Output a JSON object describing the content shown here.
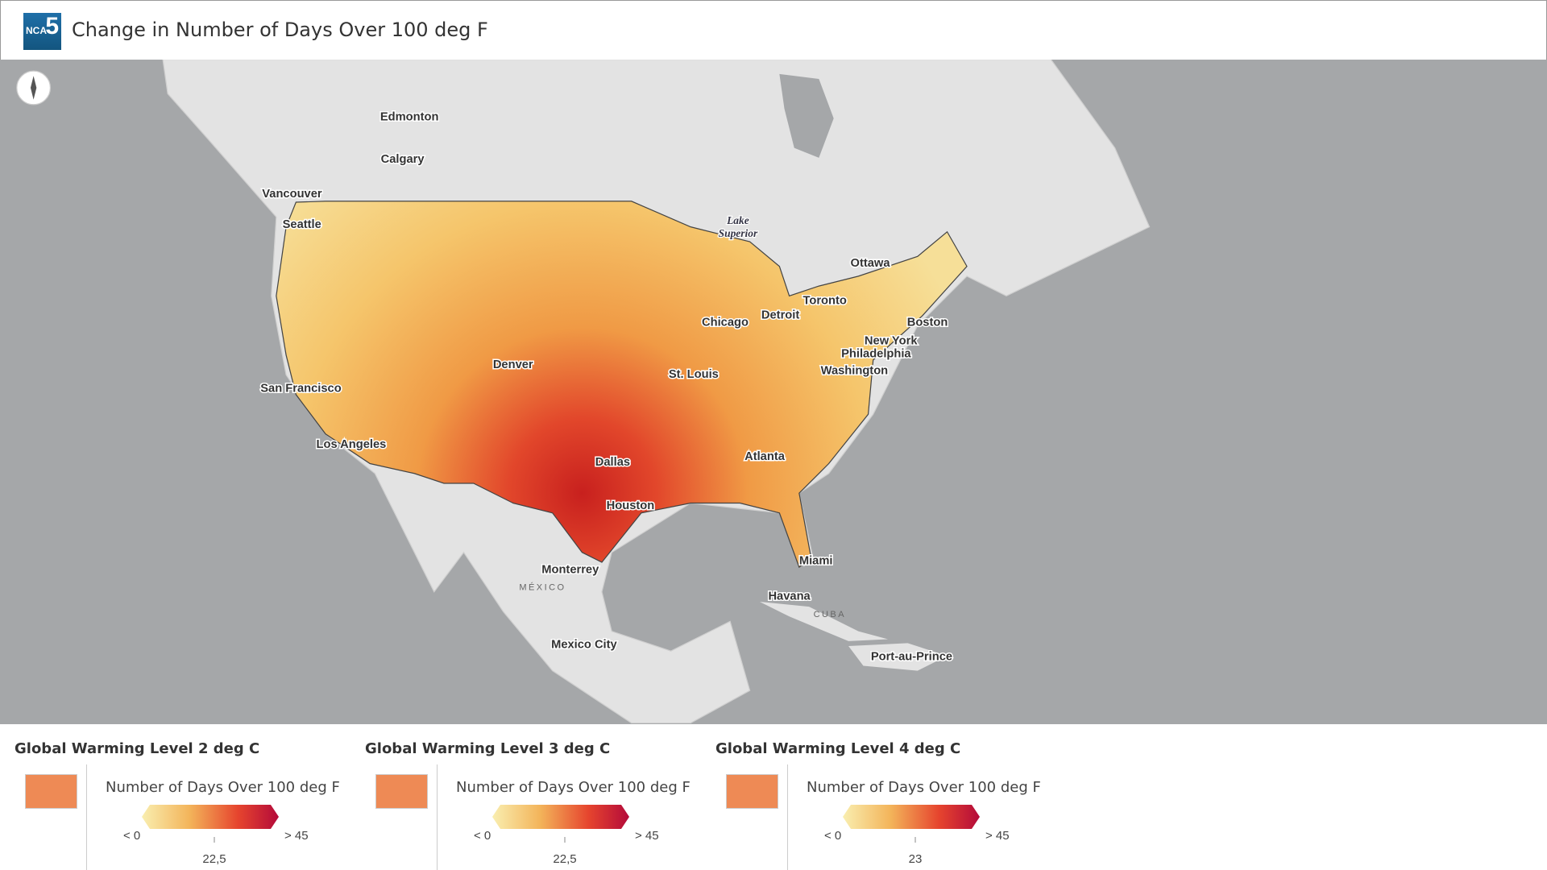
{
  "header": {
    "logo": {
      "text": "NCA",
      "number": "5"
    },
    "title": "Change in Number of Days Over 100 deg F"
  },
  "map": {
    "labels": [
      {
        "name": "Edmonton"
      },
      {
        "name": "Calgary"
      },
      {
        "name": "Vancouver"
      },
      {
        "name": "Seattle"
      },
      {
        "name": "Ottawa"
      },
      {
        "name": "Toronto"
      },
      {
        "name": "Detroit"
      },
      {
        "name": "Chicago"
      },
      {
        "name": "Boston"
      },
      {
        "name": "New York"
      },
      {
        "name": "Philadelphia"
      },
      {
        "name": "Washington"
      },
      {
        "name": "Denver"
      },
      {
        "name": "St. Louis"
      },
      {
        "name": "San Francisco"
      },
      {
        "name": "Los Angeles"
      },
      {
        "name": "Dallas"
      },
      {
        "name": "Atlanta"
      },
      {
        "name": "Houston"
      },
      {
        "name": "Miami"
      },
      {
        "name": "Monterrey"
      },
      {
        "name": "Havana"
      },
      {
        "name": "Mexico City"
      },
      {
        "name": "Port-au-Prince"
      }
    ],
    "countries": [
      "MÉXICO",
      "CUBA"
    ],
    "lake": [
      "Lake",
      "Superior"
    ]
  },
  "legend": {
    "panels": [
      {
        "title": "Global Warming Level 2 deg C",
        "subtitle": "Number of Days Over 100 deg F",
        "min_label": "< 0",
        "mid_label": "22,5",
        "max_label": "> 45"
      },
      {
        "title": "Global Warming Level 3 deg C",
        "subtitle": "Number of Days Over 100 deg F",
        "min_label": "< 0",
        "mid_label": "22,5",
        "max_label": "> 45"
      },
      {
        "title": "Global Warming Level 4 deg C",
        "subtitle": "Number of Days Over 100 deg F",
        "min_label": "< 0",
        "mid_label": "23",
        "max_label": "> 45"
      }
    ]
  }
}
